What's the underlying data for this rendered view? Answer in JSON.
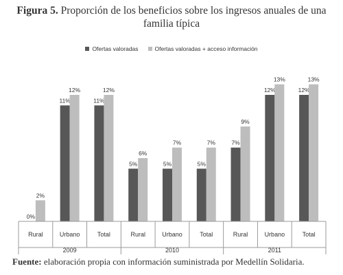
{
  "title": {
    "figure_label": "Figura 5.",
    "text": "Proporción de los beneficios sobre los ingresos anuales de una familia típica"
  },
  "source": {
    "label": "Fuente:",
    "text": "elaboración propia con información suministrada por Medellín Solidaria."
  },
  "colors": {
    "series1": "#575757",
    "series2": "#bdbdbd"
  },
  "chart_data": {
    "type": "bar",
    "title": "Proporción de los beneficios sobre los ingresos anuales de una familia típica",
    "groups": [
      {
        "year": "2009",
        "categories": [
          "Rural",
          "Urbano",
          "Total"
        ]
      },
      {
        "year": "2010",
        "categories": [
          "Rural",
          "Urbano",
          "Total"
        ]
      },
      {
        "year": "2011",
        "categories": [
          "Rural",
          "Urbano",
          "Total"
        ]
      }
    ],
    "series": [
      {
        "name": "Ofertas valoradas",
        "values": [
          0,
          11,
          11,
          5,
          5,
          5,
          7,
          12,
          12
        ],
        "labels": [
          "0%",
          "11%",
          "11%",
          "5%",
          "5%",
          "5%",
          "7%",
          "12%",
          "12%"
        ]
      },
      {
        "name": "Ofertas valoradas + acceso información",
        "values": [
          2,
          12,
          12,
          6,
          7,
          7,
          9,
          13,
          13
        ],
        "labels": [
          "2%",
          "12%",
          "12%",
          "6%",
          "7%",
          "7%",
          "9%",
          "13%",
          "13%"
        ]
      }
    ],
    "ylim": [
      0,
      15
    ],
    "grid": false,
    "legend": "top"
  }
}
